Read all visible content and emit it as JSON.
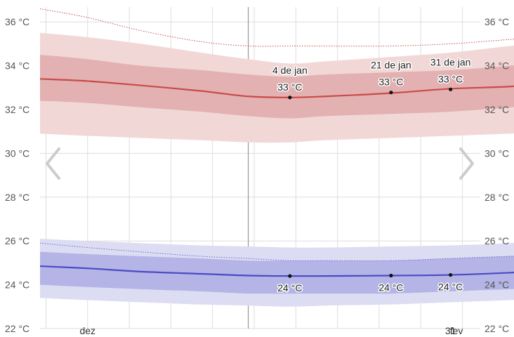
{
  "colors": {
    "high_line": "#c94a4a",
    "high_band_p25_75": "#e3b1b1",
    "high_band_p10_90": "#f2d7d7",
    "low_line": "#4a4ac4",
    "low_band_p25_75": "#b4b4e6",
    "low_band_p10_90": "#dcdcf3",
    "record_high": "#c94a4a",
    "record_low": "#6a6acc",
    "grid": "#dddddd",
    "current_day": "#9a9a9a",
    "nav_arrow": "#cccccc"
  },
  "nav": {
    "prev_icon": "chevron-left-icon",
    "next_icon": "chevron-right-icon"
  },
  "chart_data": {
    "type": "area",
    "y_unit": "°C",
    "ylim": [
      22,
      37
    ],
    "ytick_labels": [
      "22 °C",
      "24 °C",
      "26 °C",
      "28 °C",
      "30 °C",
      "32 °C",
      "34 °C",
      "36 °C"
    ],
    "yticks": [
      22,
      24,
      26,
      28,
      30,
      32,
      34,
      36
    ],
    "xlim": [
      "23 nov",
      "5 fev"
    ],
    "xtick_labels": [
      {
        "label": "dez",
        "date": "1 dez"
      },
      {
        "label": "31",
        "date": "31 jan"
      },
      {
        "label": "fev",
        "date": "1 fev"
      }
    ],
    "current_day": "28 dez",
    "x": [
      "23 nov",
      "1 dez",
      "10 dez",
      "20 dez",
      "28 dez",
      "4 jan",
      "10 jan",
      "21 jan",
      "31 jan",
      "10 fev",
      "20 fev"
    ],
    "series": [
      {
        "key": "high_avg",
        "values": [
          33.4,
          33.3,
          33.1,
          32.85,
          32.6,
          32.55,
          32.6,
          32.75,
          32.95,
          33.05,
          33.25
        ]
      },
      {
        "key": "high_p25_75_upper",
        "values": [
          34.5,
          34.3,
          34.0,
          33.8,
          33.6,
          33.5,
          33.6,
          33.7,
          33.8,
          34.0,
          34.3
        ]
      },
      {
        "key": "high_p25_75_lower",
        "values": [
          32.4,
          32.3,
          32.1,
          31.9,
          31.7,
          31.6,
          31.7,
          31.8,
          31.9,
          32.1,
          32.3
        ]
      },
      {
        "key": "high_p10_90_upper",
        "values": [
          35.5,
          35.3,
          35.0,
          34.6,
          34.3,
          34.1,
          34.2,
          34.4,
          34.6,
          34.9,
          35.2
        ]
      },
      {
        "key": "high_p10_90_lower",
        "values": [
          30.9,
          30.8,
          30.7,
          30.6,
          30.5,
          30.5,
          30.6,
          30.7,
          30.8,
          30.9,
          31.0
        ]
      },
      {
        "key": "record_high",
        "values": [
          36.6,
          36.2,
          35.6,
          35.1,
          34.9,
          34.9,
          34.9,
          34.9,
          35.0,
          35.2,
          35.4
        ]
      },
      {
        "key": "low_avg",
        "values": [
          24.85,
          24.75,
          24.6,
          24.5,
          24.42,
          24.4,
          24.4,
          24.42,
          24.45,
          24.55,
          24.7
        ]
      },
      {
        "key": "low_p25_75_upper",
        "values": [
          25.5,
          25.4,
          25.3,
          25.2,
          25.1,
          25.1,
          25.1,
          25.1,
          25.2,
          25.3,
          25.4
        ]
      },
      {
        "key": "low_p25_75_lower",
        "values": [
          24.0,
          23.9,
          23.8,
          23.7,
          23.6,
          23.6,
          23.6,
          23.6,
          23.7,
          23.8,
          23.9
        ]
      },
      {
        "key": "low_p10_90_upper",
        "values": [
          26.1,
          26.0,
          25.9,
          25.8,
          25.75,
          25.7,
          25.7,
          25.75,
          25.8,
          25.9,
          26.1
        ]
      },
      {
        "key": "low_p10_90_lower",
        "values": [
          23.4,
          23.3,
          23.2,
          23.1,
          23.05,
          23.0,
          23.05,
          23.1,
          23.2,
          23.3,
          23.4
        ]
      },
      {
        "key": "record_low",
        "values": [
          25.9,
          25.7,
          25.5,
          25.3,
          25.2,
          25.1,
          25.1,
          25.1,
          25.2,
          25.3,
          25.4
        ]
      }
    ],
    "annotations": [
      {
        "date": "4 jan",
        "series": "high_avg",
        "value": 32.55,
        "date_label": "4 de jan",
        "value_label": "33 °C"
      },
      {
        "date": "21 jan",
        "series": "high_avg",
        "value": 32.78,
        "date_label": "21 de jan",
        "value_label": "33 °C"
      },
      {
        "date": "31 jan",
        "series": "high_avg",
        "value": 32.92,
        "date_label": "31 de jan",
        "value_label": "33 °C"
      },
      {
        "date": "4 jan",
        "series": "low_avg",
        "value": 24.4,
        "value_label": "24 °C"
      },
      {
        "date": "21 jan",
        "series": "low_avg",
        "value": 24.42,
        "value_label": "24 °C"
      },
      {
        "date": "31 jan",
        "series": "low_avg",
        "value": 24.45,
        "value_label": "24 °C"
      }
    ]
  }
}
